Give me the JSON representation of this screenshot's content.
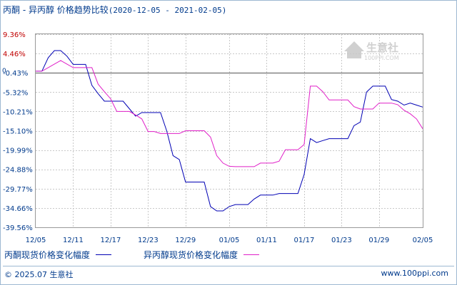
{
  "title": {
    "text": "丙酮 - 异丙醇 价格趋势比较",
    "range": "(2020-12-05 - 2021-02-05)"
  },
  "watermark": {
    "text": "生意社",
    "subtext": "100PPI.COM"
  },
  "footer": {
    "left": "© 2025.07 生意社",
    "right": "www.100ppi.com"
  },
  "colors": {
    "series1": "#0000b4",
    "series2": "#e020c8",
    "grid": "#c8c8c8",
    "tick_red": "#c00000",
    "tick_blue": "#003a8c",
    "zero_line": "#555555"
  },
  "chart_data": {
    "type": "line",
    "title": "丙酮 - 异丙醇 价格趋势比较",
    "ylim": [
      -39.56,
      9.36
    ],
    "yticks": [
      "9.36%",
      "4.46%",
      "-0.43%",
      "-5.32%",
      "-10.21%",
      "-15.10%",
      "-19.99%",
      "-24.88%",
      "-29.77%",
      "-34.66%",
      "-39.56%"
    ],
    "yticks_values": [
      9.36,
      4.46,
      -0.43,
      -5.32,
      -10.21,
      -15.1,
      -19.99,
      -24.88,
      -29.77,
      -34.66,
      -39.56
    ],
    "zero_label": "0",
    "xticks": [
      "12/05",
      "12/11",
      "12/17",
      "12/23",
      "12/29",
      "01/05",
      "01/11",
      "01/17",
      "01/23",
      "01/29",
      "02/05"
    ],
    "xticks_days": [
      0,
      6,
      12,
      18,
      24,
      31,
      37,
      43,
      49,
      55,
      62
    ],
    "x_days_range": [
      0,
      62
    ],
    "series": [
      {
        "name": "丙酮现货价格变化幅度",
        "points": [
          [
            0,
            0
          ],
          [
            1,
            0
          ],
          [
            2,
            3.4
          ],
          [
            3,
            5.2
          ],
          [
            4,
            5.2
          ],
          [
            5,
            3.8
          ],
          [
            6,
            1.7
          ],
          [
            7,
            1.7
          ],
          [
            8,
            1.7
          ],
          [
            9,
            -3.6
          ],
          [
            10,
            -5.7
          ],
          [
            11,
            -7.6
          ],
          [
            12,
            -7.6
          ],
          [
            13,
            -7.6
          ],
          [
            14,
            -7.6
          ],
          [
            15,
            -9.5
          ],
          [
            16,
            -11.4
          ],
          [
            17,
            -10.5
          ],
          [
            18,
            -10.5
          ],
          [
            19,
            -10.5
          ],
          [
            20,
            -10.5
          ],
          [
            21,
            -15.2
          ],
          [
            22,
            -21.4
          ],
          [
            23,
            -22.4
          ],
          [
            24,
            -28.1
          ],
          [
            25,
            -28.1
          ],
          [
            26,
            -28.1
          ],
          [
            27,
            -28.1
          ],
          [
            28,
            -34.3
          ],
          [
            29,
            -35.4
          ],
          [
            30,
            -35.4
          ],
          [
            31,
            -34.3
          ],
          [
            32,
            -33.8
          ],
          [
            33,
            -33.8
          ],
          [
            34,
            -33.8
          ],
          [
            35,
            -32.4
          ],
          [
            36,
            -31.4
          ],
          [
            37,
            -31.4
          ],
          [
            38,
            -31.4
          ],
          [
            39,
            -31.0
          ],
          [
            40,
            -31.0
          ],
          [
            41,
            -31.0
          ],
          [
            42,
            -31.0
          ],
          [
            43,
            -26.2
          ],
          [
            44,
            -17.1
          ],
          [
            45,
            -18.1
          ],
          [
            46,
            -17.6
          ],
          [
            47,
            -17.1
          ],
          [
            48,
            -17.1
          ],
          [
            49,
            -17.1
          ],
          [
            50,
            -17.1
          ],
          [
            51,
            -13.8
          ],
          [
            52,
            -12.9
          ],
          [
            53,
            -5.3
          ],
          [
            54,
            -3.8
          ],
          [
            55,
            -3.8
          ],
          [
            56,
            -3.8
          ],
          [
            57,
            -7.2
          ],
          [
            58,
            -7.6
          ],
          [
            59,
            -8.6
          ],
          [
            60,
            -8.1
          ],
          [
            61,
            -8.6
          ],
          [
            62,
            -9.1
          ]
        ]
      },
      {
        "name": "异丙醇现货价格变化幅度",
        "points": [
          [
            0,
            0
          ],
          [
            1,
            0
          ],
          [
            2,
            0.9
          ],
          [
            3,
            1.8
          ],
          [
            4,
            2.7
          ],
          [
            5,
            1.8
          ],
          [
            6,
            0.9
          ],
          [
            7,
            0.9
          ],
          [
            8,
            0.9
          ],
          [
            9,
            0.9
          ],
          [
            10,
            -3.3
          ],
          [
            11,
            -5.2
          ],
          [
            12,
            -7.0
          ],
          [
            13,
            -10.2
          ],
          [
            14,
            -10.2
          ],
          [
            15,
            -10.2
          ],
          [
            16,
            -11.1
          ],
          [
            17,
            -12.1
          ],
          [
            18,
            -15.3
          ],
          [
            19,
            -15.3
          ],
          [
            20,
            -15.8
          ],
          [
            21,
            -15.8
          ],
          [
            22,
            -15.8
          ],
          [
            23,
            -15.8
          ],
          [
            24,
            -15.1
          ],
          [
            25,
            -15.1
          ],
          [
            26,
            -15.1
          ],
          [
            27,
            -15.1
          ],
          [
            28,
            -16.7
          ],
          [
            29,
            -21.4
          ],
          [
            30,
            -23.3
          ],
          [
            31,
            -24.1
          ],
          [
            32,
            -24.2
          ],
          [
            33,
            -24.2
          ],
          [
            34,
            -24.2
          ],
          [
            35,
            -24.2
          ],
          [
            36,
            -23.3
          ],
          [
            37,
            -23.3
          ],
          [
            38,
            -23.3
          ],
          [
            39,
            -22.8
          ],
          [
            40,
            -19.9
          ],
          [
            41,
            -19.9
          ],
          [
            42,
            -19.9
          ],
          [
            43,
            -18.6
          ],
          [
            44,
            -3.8
          ],
          [
            45,
            -3.8
          ],
          [
            46,
            -5.2
          ],
          [
            47,
            -7.3
          ],
          [
            48,
            -7.3
          ],
          [
            49,
            -7.3
          ],
          [
            50,
            -7.3
          ],
          [
            51,
            -9.0
          ],
          [
            52,
            -9.6
          ],
          [
            53,
            -9.6
          ],
          [
            54,
            -9.6
          ],
          [
            55,
            -8.1
          ],
          [
            56,
            -8.1
          ],
          [
            57,
            -8.1
          ],
          [
            58,
            -8.5
          ],
          [
            59,
            -9.9
          ],
          [
            60,
            -10.8
          ],
          [
            61,
            -12.1
          ],
          [
            62,
            -14.6
          ]
        ]
      }
    ],
    "grid": true,
    "legend_position": "bottom"
  }
}
